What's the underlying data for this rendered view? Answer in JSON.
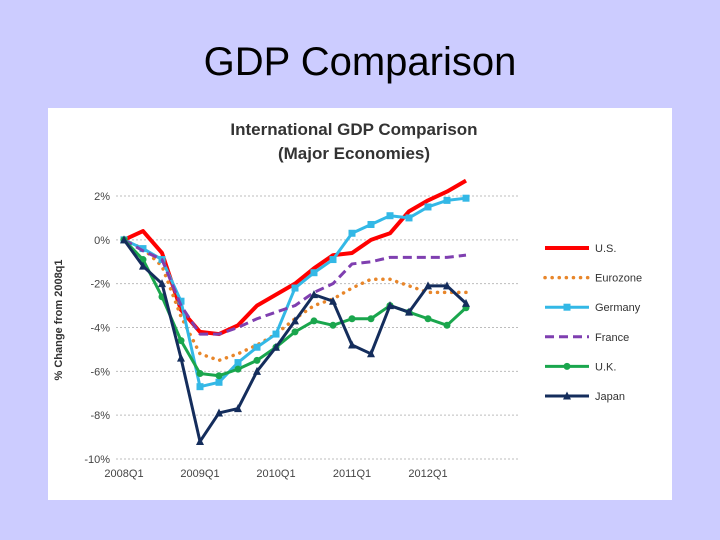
{
  "slide": {
    "title": "GDP Comparison"
  },
  "chart_data": {
    "type": "line",
    "title": "International GDP Comparison",
    "subtitle": "(Major Economies)",
    "xlabel": "",
    "ylabel": "% Change from 2008q1",
    "ylim": [
      -10,
      2
    ],
    "y_ticks": [
      2,
      0,
      -2,
      -4,
      -6,
      -8,
      -10
    ],
    "y_tick_labels": [
      "2%",
      "0%",
      "-2%",
      "-4%",
      "-6%",
      "-8%",
      "-10%"
    ],
    "x_tick_labels": [
      "2008Q1",
      "2009Q1",
      "2010Q1",
      "2011Q1",
      "2012Q1"
    ],
    "x_tick_indices": [
      0,
      4,
      8,
      12,
      16
    ],
    "x_count": 19,
    "legend_position": "right",
    "series": [
      {
        "name": "U.S.",
        "color": "#ff0000",
        "style": "solid",
        "width": 4,
        "marker": "none",
        "values": [
          0,
          0.4,
          -0.6,
          -3.2,
          -4.2,
          -4.3,
          -3.9,
          -3.0,
          -2.5,
          -2.0,
          -1.3,
          -0.7,
          -0.6,
          0.0,
          0.3,
          1.3,
          1.8,
          2.2,
          2.7
        ]
      },
      {
        "name": "Eurozone",
        "color": "#e8862a",
        "style": "dotted",
        "width": 3.5,
        "marker": "none",
        "values": [
          0,
          -0.4,
          -1.2,
          -3.5,
          -5.2,
          -5.5,
          -5.2,
          -4.8,
          -4.3,
          -3.6,
          -3.0,
          -2.7,
          -2.2,
          -1.8,
          -1.8,
          -2.1,
          -2.4,
          -2.4,
          -2.4
        ]
      },
      {
        "name": "Germany",
        "color": "#33b8e6",
        "style": "solid",
        "width": 3,
        "marker": "square",
        "values": [
          0,
          -0.4,
          -0.9,
          -2.8,
          -6.7,
          -6.5,
          -5.6,
          -4.9,
          -4.3,
          -2.2,
          -1.5,
          -0.9,
          0.3,
          0.7,
          1.1,
          1.0,
          1.5,
          1.8,
          1.9
        ]
      },
      {
        "name": "France",
        "color": "#7f3fb0",
        "style": "dashed",
        "width": 3,
        "marker": "none",
        "values": [
          0,
          -0.5,
          -0.9,
          -3.0,
          -4.3,
          -4.3,
          -4.0,
          -3.6,
          -3.3,
          -3.0,
          -2.4,
          -2.0,
          -1.1,
          -1.0,
          -0.8,
          -0.8,
          -0.8,
          -0.8,
          -0.7
        ]
      },
      {
        "name": "U.K.",
        "color": "#1aa64d",
        "style": "solid",
        "width": 3,
        "marker": "circle",
        "values": [
          0,
          -0.9,
          -2.6,
          -4.6,
          -6.1,
          -6.2,
          -5.9,
          -5.5,
          -4.9,
          -4.2,
          -3.7,
          -3.9,
          -3.6,
          -3.6,
          -3.0,
          -3.3,
          -3.6,
          -3.9,
          -3.1
        ]
      },
      {
        "name": "Japan",
        "color": "#142d5c",
        "style": "solid",
        "width": 3,
        "marker": "triangle",
        "values": [
          0,
          -1.2,
          -2.0,
          -5.4,
          -9.2,
          -7.9,
          -7.7,
          -6.0,
          -4.9,
          -3.7,
          -2.5,
          -2.8,
          -4.8,
          -5.2,
          -3.0,
          -3.3,
          -2.1,
          -2.1,
          -2.9
        ]
      }
    ]
  }
}
